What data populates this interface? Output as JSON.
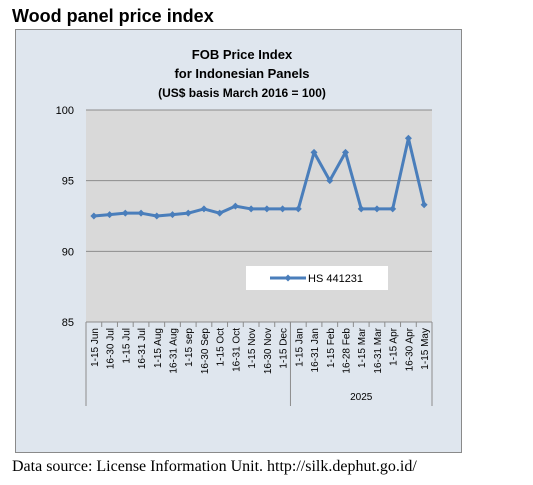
{
  "page": {
    "heading": "Wood panel price index",
    "source": "Data source: License Information Unit. http://silk.dephut.go.id/"
  },
  "colors": {
    "frame_bg": "#dfe6ee",
    "plot_bg": "#d9d9d9",
    "series": "#4a7ebb",
    "grid": "#8c8c8c",
    "legend_bg": "#ffffff"
  },
  "chart_data": {
    "type": "line",
    "title": [
      "FOB Price Index",
      "for Indonesian Panels",
      "(US$ basis March 2016 = 100)"
    ],
    "xlabel": "",
    "ylabel": "",
    "ylim": [
      85,
      100
    ],
    "yticks": [
      85,
      90,
      95,
      100
    ],
    "grid": true,
    "legend_position": "center-right",
    "categories": [
      "1-15 Jun",
      "16-30 Jul",
      "1-15 Jul",
      "16-31 Jul",
      "1-15 Aug",
      "16-31 Aug",
      "1-15 sep",
      "16-30 Sep",
      "1-15 Oct",
      "16-31 Oct",
      "1-15 Nov",
      "16-30 Nov",
      "1-15 Dec",
      "1-15 Jan",
      "16-31 Jan",
      "1-15 Feb",
      "16-28 Feb",
      "1-15 Mar",
      "16-31 Mar",
      "1-15 Apr",
      "16-30 Apr",
      "1-15 May"
    ],
    "group_labels": [
      "",
      "2025"
    ],
    "series": [
      {
        "name": "HS 441231",
        "values": [
          92.5,
          92.6,
          92.7,
          92.7,
          92.5,
          92.6,
          92.7,
          93.0,
          92.7,
          93.2,
          93.0,
          93.0,
          93.0,
          93.0,
          97.0,
          95.0,
          97.0,
          93.0,
          93.0,
          93.0,
          98.0,
          93.3
        ]
      }
    ]
  }
}
